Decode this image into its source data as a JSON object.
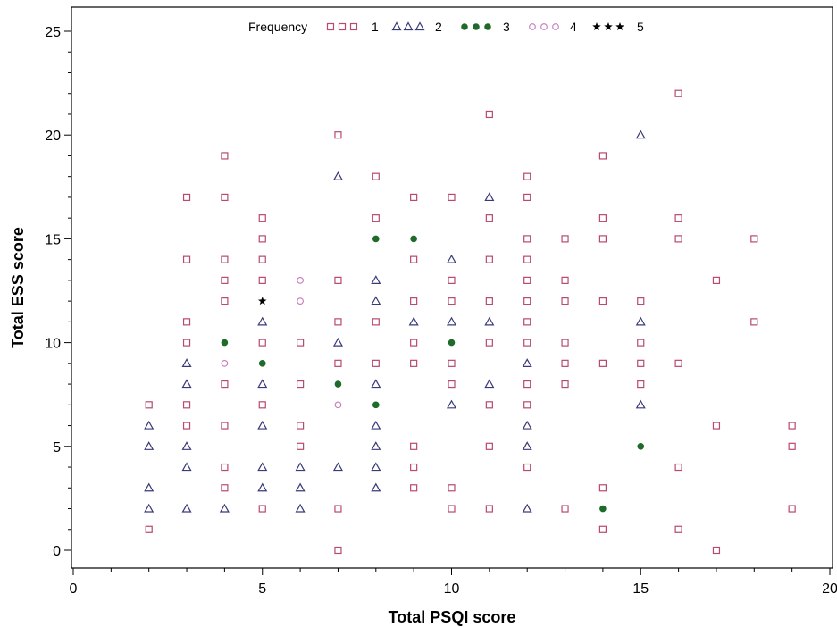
{
  "chart_data": {
    "type": "scatter",
    "title": "",
    "xlabel": "Total PSQI score",
    "ylabel": "Total ESS score",
    "xlim": [
      0,
      20
    ],
    "ylim": [
      0,
      25
    ],
    "xticks": [
      0,
      5,
      10,
      15,
      20
    ],
    "yticks": [
      0,
      5,
      10,
      15,
      20,
      25
    ],
    "grid": false,
    "legend": {
      "title": "Frequency",
      "placement": "top-center"
    },
    "series": [
      {
        "name": "1",
        "marker": "square",
        "color": "#b84a6a",
        "points": [
          [
            2,
            1
          ],
          [
            2,
            7
          ],
          [
            3,
            6
          ],
          [
            3,
            7
          ],
          [
            3,
            10
          ],
          [
            3,
            11
          ],
          [
            3,
            14
          ],
          [
            3,
            17
          ],
          [
            4,
            3
          ],
          [
            4,
            4
          ],
          [
            4,
            6
          ],
          [
            4,
            8
          ],
          [
            4,
            12
          ],
          [
            4,
            13
          ],
          [
            4,
            14
          ],
          [
            4,
            17
          ],
          [
            4,
            19
          ],
          [
            5,
            2
          ],
          [
            5,
            7
          ],
          [
            5,
            10
          ],
          [
            5,
            13
          ],
          [
            5,
            14
          ],
          [
            5,
            15
          ],
          [
            5,
            16
          ],
          [
            6,
            5
          ],
          [
            6,
            6
          ],
          [
            6,
            8
          ],
          [
            6,
            10
          ],
          [
            7,
            0
          ],
          [
            7,
            2
          ],
          [
            7,
            9
          ],
          [
            7,
            11
          ],
          [
            7,
            13
          ],
          [
            7,
            20
          ],
          [
            8,
            9
          ],
          [
            8,
            11
          ],
          [
            8,
            16
          ],
          [
            8,
            18
          ],
          [
            9,
            3
          ],
          [
            9,
            4
          ],
          [
            9,
            5
          ],
          [
            9,
            9
          ],
          [
            9,
            10
          ],
          [
            9,
            12
          ],
          [
            9,
            14
          ],
          [
            9,
            17
          ],
          [
            10,
            2
          ],
          [
            10,
            3
          ],
          [
            10,
            8
          ],
          [
            10,
            9
          ],
          [
            10,
            12
          ],
          [
            10,
            13
          ],
          [
            10,
            17
          ],
          [
            11,
            2
          ],
          [
            11,
            5
          ],
          [
            11,
            7
          ],
          [
            11,
            10
          ],
          [
            11,
            12
          ],
          [
            11,
            14
          ],
          [
            11,
            16
          ],
          [
            11,
            21
          ],
          [
            12,
            4
          ],
          [
            12,
            7
          ],
          [
            12,
            8
          ],
          [
            12,
            10
          ],
          [
            12,
            11
          ],
          [
            12,
            12
          ],
          [
            12,
            13
          ],
          [
            12,
            14
          ],
          [
            12,
            15
          ],
          [
            12,
            17
          ],
          [
            12,
            18
          ],
          [
            13,
            2
          ],
          [
            13,
            8
          ],
          [
            13,
            9
          ],
          [
            13,
            10
          ],
          [
            13,
            12
          ],
          [
            13,
            13
          ],
          [
            13,
            15
          ],
          [
            14,
            1
          ],
          [
            14,
            3
          ],
          [
            14,
            9
          ],
          [
            14,
            12
          ],
          [
            14,
            15
          ],
          [
            14,
            16
          ],
          [
            14,
            19
          ],
          [
            15,
            8
          ],
          [
            15,
            9
          ],
          [
            15,
            10
          ],
          [
            15,
            12
          ],
          [
            16,
            1
          ],
          [
            16,
            4
          ],
          [
            16,
            9
          ],
          [
            16,
            15
          ],
          [
            16,
            16
          ],
          [
            16,
            22
          ],
          [
            17,
            0
          ],
          [
            17,
            6
          ],
          [
            17,
            13
          ],
          [
            18,
            11
          ],
          [
            18,
            15
          ],
          [
            19,
            2
          ],
          [
            19,
            5
          ],
          [
            19,
            6
          ]
        ]
      },
      {
        "name": "2",
        "marker": "triangle",
        "color": "#3a3a7a",
        "points": [
          [
            2,
            2
          ],
          [
            2,
            3
          ],
          [
            2,
            5
          ],
          [
            2,
            6
          ],
          [
            3,
            2
          ],
          [
            3,
            4
          ],
          [
            3,
            5
          ],
          [
            3,
            8
          ],
          [
            3,
            9
          ],
          [
            4,
            2
          ],
          [
            5,
            3
          ],
          [
            5,
            4
          ],
          [
            5,
            6
          ],
          [
            5,
            8
          ],
          [
            5,
            11
          ],
          [
            6,
            2
          ],
          [
            6,
            3
          ],
          [
            6,
            4
          ],
          [
            7,
            4
          ],
          [
            7,
            10
          ],
          [
            7,
            18
          ],
          [
            8,
            3
          ],
          [
            8,
            4
          ],
          [
            8,
            5
          ],
          [
            8,
            6
          ],
          [
            8,
            8
          ],
          [
            8,
            12
          ],
          [
            8,
            13
          ],
          [
            9,
            11
          ],
          [
            10,
            7
          ],
          [
            10,
            11
          ],
          [
            10,
            14
          ],
          [
            11,
            8
          ],
          [
            11,
            11
          ],
          [
            11,
            17
          ],
          [
            12,
            2
          ],
          [
            12,
            5
          ],
          [
            12,
            6
          ],
          [
            12,
            9
          ],
          [
            15,
            7
          ],
          [
            15,
            11
          ],
          [
            15,
            20
          ]
        ]
      },
      {
        "name": "3",
        "marker": "dot",
        "color": "#1f6b2a",
        "points": [
          [
            4,
            10
          ],
          [
            5,
            9
          ],
          [
            7,
            8
          ],
          [
            8,
            7
          ],
          [
            8,
            15
          ],
          [
            9,
            15
          ],
          [
            10,
            10
          ],
          [
            14,
            2
          ],
          [
            15,
            5
          ]
        ]
      },
      {
        "name": "4",
        "marker": "circle",
        "color": "#c77ab8",
        "points": [
          [
            4,
            9
          ],
          [
            6,
            12
          ],
          [
            6,
            13
          ],
          [
            7,
            7
          ]
        ]
      },
      {
        "name": "5",
        "marker": "star",
        "color": "#000000",
        "points": [
          [
            5,
            12
          ]
        ]
      }
    ]
  }
}
